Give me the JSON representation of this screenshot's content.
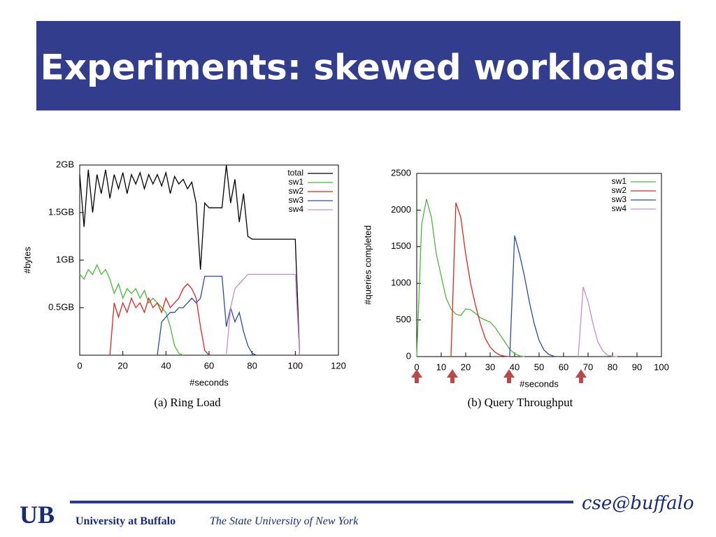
{
  "title": "Experiments: skewed workloads",
  "chart_data": [
    {
      "type": "line",
      "caption": "(a) Ring Load",
      "xlabel": "#seconds",
      "ylabel": "#bytes",
      "xlim": [
        0,
        120
      ],
      "xticks": [
        0,
        20,
        40,
        60,
        80,
        100,
        120
      ],
      "ylim": [
        0,
        2
      ],
      "yticks": [
        {
          "value": 0.5,
          "label": "0.5GB"
        },
        {
          "value": 1,
          "label": "1GB"
        },
        {
          "value": 1.5,
          "label": "1.5GB"
        },
        {
          "value": 2,
          "label": "2GB"
        }
      ],
      "legend": "top-right",
      "x": [
        0,
        2,
        4,
        6,
        8,
        10,
        12,
        14,
        16,
        18,
        20,
        22,
        24,
        26,
        28,
        30,
        32,
        34,
        36,
        38,
        40,
        42,
        44,
        46,
        48,
        50,
        52,
        54,
        56,
        58,
        60,
        62,
        64,
        66,
        68,
        70,
        72,
        74,
        76,
        78,
        80,
        82,
        84,
        86,
        88,
        90,
        92,
        94,
        96,
        98,
        100,
        102
      ],
      "series": [
        {
          "name": "total",
          "color": "#000000",
          "values": [
            1.9,
            1.35,
            1.95,
            1.5,
            1.9,
            1.7,
            1.95,
            1.65,
            1.9,
            1.75,
            1.92,
            1.7,
            1.9,
            1.8,
            1.92,
            1.75,
            1.9,
            1.8,
            1.9,
            1.78,
            1.92,
            1.7,
            1.88,
            1.8,
            1.85,
            1.75,
            1.82,
            1.6,
            0.9,
            1.6,
            1.55,
            1.55,
            1.55,
            1.55,
            2.0,
            1.6,
            1.85,
            1.4,
            1.7,
            1.25,
            1.22,
            1.22,
            1.22,
            1.22,
            1.22,
            1.22,
            1.22,
            1.22,
            1.22,
            1.22,
            1.22,
            0
          ]
        },
        {
          "name": "sw1",
          "color": "#4cb83c",
          "values": [
            0.85,
            0.8,
            0.9,
            0.85,
            0.95,
            0.85,
            0.9,
            0.8,
            0.65,
            0.75,
            0.6,
            0.7,
            0.65,
            0.7,
            0.6,
            0.68,
            0.55,
            0.6,
            0.55,
            0.5,
            0.45,
            0.3,
            0.1,
            0.02,
            0,
            null,
            null,
            null,
            null,
            null,
            null,
            null,
            null,
            null,
            null,
            null,
            null,
            null,
            null,
            null,
            null,
            null,
            null,
            null,
            null,
            null,
            null,
            null,
            null,
            null,
            null,
            null
          ]
        },
        {
          "name": "sw2",
          "color": "#e0261f",
          "values": [
            null,
            null,
            null,
            null,
            null,
            null,
            null,
            0,
            0.55,
            0.4,
            0.55,
            0.45,
            0.6,
            0.5,
            0.55,
            0.45,
            0.6,
            0.5,
            0.55,
            0.45,
            0.6,
            0.5,
            0.55,
            0.6,
            0.7,
            0.75,
            0.7,
            0.6,
            0.3,
            0.05,
            0,
            null,
            null,
            null,
            null,
            null,
            null,
            null,
            null,
            null,
            null,
            null,
            null,
            null,
            null,
            null,
            null,
            null,
            null,
            null,
            null,
            null
          ]
        },
        {
          "name": "sw3",
          "color": "#2a4ca8",
          "values": [
            null,
            null,
            null,
            null,
            null,
            null,
            null,
            null,
            null,
            null,
            null,
            null,
            null,
            null,
            null,
            null,
            null,
            null,
            0,
            0.35,
            0.4,
            0.45,
            0.45,
            0.5,
            0.5,
            0.55,
            0.6,
            0.55,
            0.6,
            0.83,
            0.83,
            0.83,
            0.83,
            0.83,
            0.3,
            0.5,
            0.35,
            0.45,
            0.25,
            0.1,
            0.02,
            0,
            null,
            null,
            null,
            null,
            null,
            null,
            null,
            null,
            null,
            null
          ]
        },
        {
          "name": "sw4",
          "color": "#c78ec2",
          "values": [
            null,
            null,
            null,
            null,
            null,
            null,
            null,
            null,
            null,
            null,
            null,
            null,
            null,
            null,
            null,
            null,
            null,
            null,
            null,
            null,
            null,
            null,
            null,
            null,
            null,
            null,
            null,
            null,
            null,
            null,
            null,
            null,
            null,
            null,
            0,
            0.5,
            0.7,
            0.75,
            0.8,
            0.85,
            0.85,
            0.85,
            0.85,
            0.85,
            0.85,
            0.85,
            0.85,
            0.85,
            0.85,
            0.85,
            0.85,
            0
          ]
        }
      ]
    },
    {
      "type": "line",
      "caption": "(b) Query Throughput",
      "xlabel": "#seconds",
      "ylabel": "#queries completed",
      "xlim": [
        0,
        100
      ],
      "xticks": [
        0,
        10,
        20,
        30,
        40,
        50,
        60,
        70,
        80,
        90,
        100
      ],
      "ylim": [
        0,
        2500
      ],
      "yticks": [
        0,
        500,
        1000,
        1500,
        2000,
        2500
      ],
      "legend": "top-right",
      "x": [
        0,
        2,
        4,
        6,
        8,
        10,
        12,
        14,
        16,
        18,
        20,
        22,
        24,
        26,
        28,
        30,
        32,
        34,
        36,
        38,
        40,
        42,
        44,
        46,
        48,
        50,
        52,
        54,
        56,
        58,
        60,
        62,
        64,
        66,
        68,
        70,
        72,
        74,
        76,
        78,
        80,
        82,
        84,
        86,
        88,
        90,
        92,
        94,
        96
      ],
      "series": [
        {
          "name": "sw1",
          "color": "#4cb83c",
          "values": [
            0,
            1800,
            2150,
            1900,
            1400,
            1100,
            800,
            650,
            580,
            560,
            650,
            640,
            590,
            530,
            500,
            470,
            400,
            300,
            200,
            100,
            40,
            10,
            0,
            null,
            null,
            null,
            null,
            null,
            null,
            null,
            null,
            null,
            null,
            null,
            null,
            null,
            null,
            null,
            null,
            null,
            null,
            null,
            null,
            null,
            null,
            null,
            null,
            null,
            null
          ]
        },
        {
          "name": "sw2",
          "color": "#e0261f",
          "values": [
            null,
            null,
            null,
            null,
            null,
            null,
            null,
            0,
            2100,
            1900,
            1400,
            1000,
            700,
            450,
            250,
            130,
            60,
            20,
            5,
            0,
            null,
            null,
            null,
            null,
            null,
            null,
            null,
            null,
            null,
            null,
            null,
            null,
            null,
            null,
            null,
            null,
            null,
            null,
            null,
            null,
            null,
            null,
            null,
            null,
            null,
            null,
            null,
            null,
            null
          ]
        },
        {
          "name": "sw3",
          "color": "#2a4ca8",
          "values": [
            null,
            null,
            null,
            null,
            null,
            null,
            null,
            null,
            null,
            null,
            null,
            null,
            null,
            null,
            null,
            null,
            null,
            null,
            null,
            0,
            1650,
            1400,
            1100,
            750,
            450,
            220,
            90,
            30,
            5,
            0,
            null,
            null,
            null,
            null,
            null,
            null,
            null,
            null,
            null,
            null,
            null,
            null,
            null,
            null,
            null,
            null,
            null,
            null,
            null
          ]
        },
        {
          "name": "sw4",
          "color": "#c78ec2",
          "values": [
            null,
            null,
            null,
            null,
            null,
            null,
            null,
            null,
            null,
            null,
            null,
            null,
            null,
            null,
            null,
            null,
            null,
            null,
            null,
            null,
            null,
            null,
            null,
            null,
            null,
            null,
            null,
            null,
            null,
            null,
            null,
            null,
            null,
            0,
            950,
            750,
            450,
            200,
            80,
            20,
            5,
            0,
            null,
            null,
            null,
            null,
            null,
            null,
            null
          ]
        }
      ]
    }
  ],
  "footer": {
    "university": "University at Buffalo",
    "subtitle": "The State University of New York",
    "brand": "cse@buffalo"
  }
}
